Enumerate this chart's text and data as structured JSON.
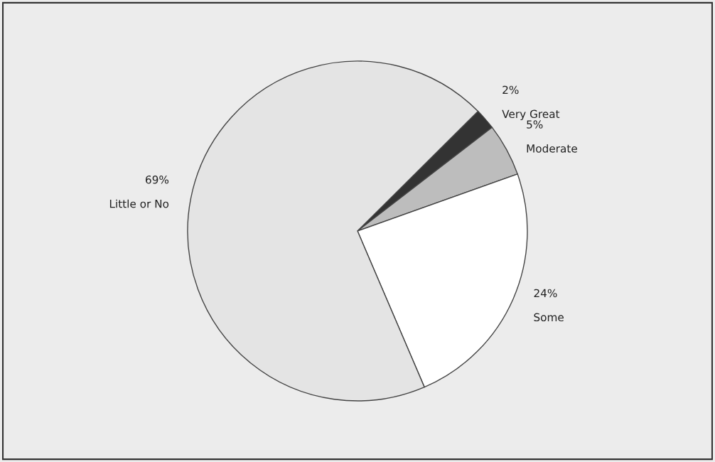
{
  "chart_data": {
    "type": "pie",
    "categories": [
      "Very Great",
      "Moderate",
      "Some",
      "Little or No"
    ],
    "values": [
      2,
      5,
      24,
      69
    ],
    "value_labels": [
      "2%",
      "5%",
      "24%",
      "69%"
    ],
    "colors": [
      "#333333",
      "#bdbdbd",
      "#ffffff",
      "#e4e4e4"
    ]
  }
}
